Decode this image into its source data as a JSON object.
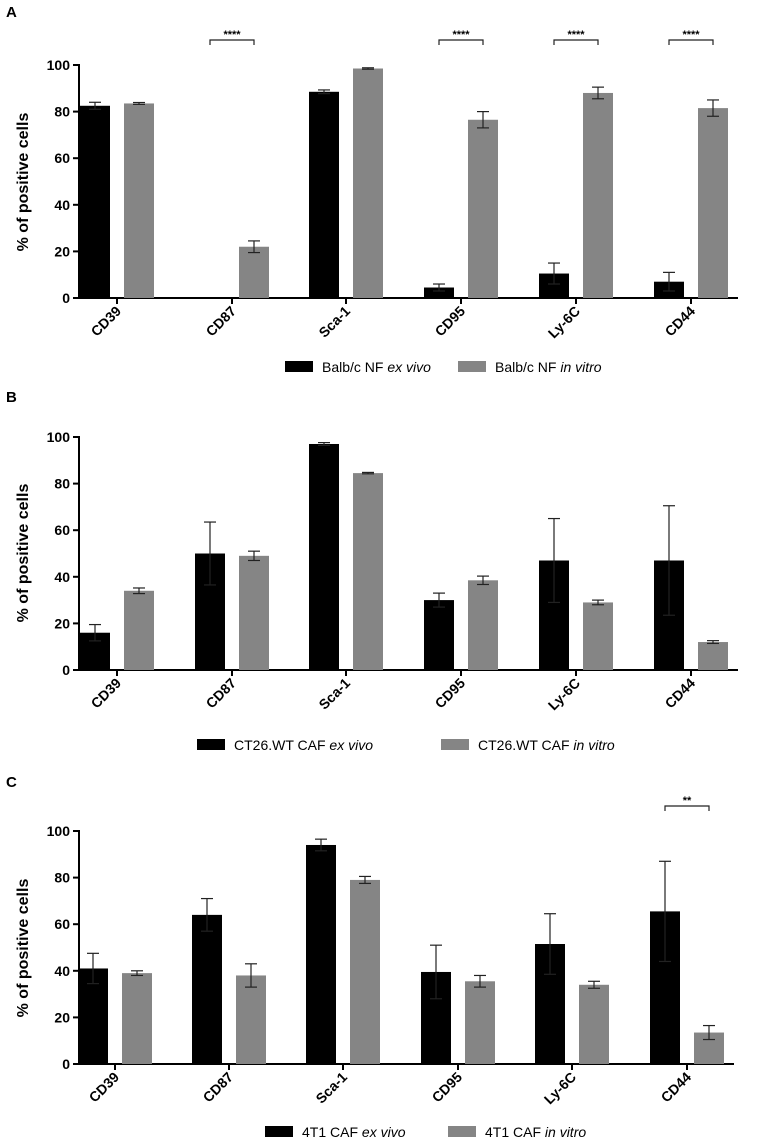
{
  "colors": {
    "ex_vivo": "#000000",
    "in_vitro": "#858585"
  },
  "chart_data": [
    {
      "panel": "A",
      "type": "bar",
      "ylabel": "% of positive cells",
      "ylim": [
        0,
        100
      ],
      "yticks": [
        0,
        20,
        40,
        60,
        80,
        100
      ],
      "categories": [
        "CD39",
        "CD87",
        "Sca-1",
        "CD95",
        "Ly-6C",
        "CD44"
      ],
      "series": [
        {
          "name": "Balb/c NF",
          "suffix": "ex vivo",
          "values": [
            82.5,
            0,
            88.5,
            4.5,
            10.5,
            7
          ],
          "errors": [
            1.5,
            0,
            0.8,
            1.5,
            4.5,
            4
          ]
        },
        {
          "name": "Balb/c NF",
          "suffix": "in vitro",
          "values": [
            83.5,
            22,
            98.5,
            76.5,
            88,
            81.5
          ],
          "errors": [
            0.4,
            2.5,
            0.3,
            3.5,
            2.5,
            3.5
          ]
        }
      ],
      "significance": [
        {
          "category": "CD87",
          "label": "****"
        },
        {
          "category": "CD95",
          "label": "****"
        },
        {
          "category": "Ly-6C",
          "label": "****"
        },
        {
          "category": "CD44",
          "label": "****"
        }
      ]
    },
    {
      "panel": "B",
      "type": "bar",
      "ylabel": "% of positive cells",
      "ylim": [
        0,
        100
      ],
      "yticks": [
        0,
        20,
        40,
        60,
        80,
        100
      ],
      "categories": [
        "CD39",
        "CD87",
        "Sca-1",
        "CD95",
        "Ly-6C",
        "CD44"
      ],
      "series": [
        {
          "name": "CT26.WT CAF",
          "suffix": "ex vivo",
          "values": [
            16,
            50,
            97,
            30,
            47,
            47
          ],
          "errors": [
            3.5,
            13.5,
            0.6,
            3,
            18,
            23.5
          ]
        },
        {
          "name": "CT26.WT CAF",
          "suffix": "in vitro",
          "values": [
            34,
            49,
            84.5,
            38.5,
            29,
            12
          ],
          "errors": [
            1.2,
            2,
            0.3,
            1.8,
            1,
            0.6
          ]
        }
      ],
      "significance": []
    },
    {
      "panel": "C",
      "type": "bar",
      "ylabel": "% of positive cells",
      "ylim": [
        0,
        100
      ],
      "yticks": [
        0,
        20,
        40,
        60,
        80,
        100
      ],
      "categories": [
        "CD39",
        "CD87",
        "Sca-1",
        "CD95",
        "Ly-6C",
        "CD44"
      ],
      "series": [
        {
          "name": "4T1 CAF",
          "suffix": "ex vivo",
          "values": [
            41,
            64,
            94,
            39.5,
            51.5,
            65.5
          ],
          "errors": [
            6.5,
            7,
            2.5,
            11.5,
            13,
            21.5
          ]
        },
        {
          "name": "4T1 CAF",
          "suffix": "in vitro",
          "values": [
            39,
            38,
            79,
            35.5,
            34,
            13.5
          ],
          "errors": [
            1,
            5,
            1.5,
            2.5,
            1.5,
            3
          ]
        }
      ],
      "significance": [
        {
          "category": "CD44",
          "label": "**"
        }
      ]
    }
  ]
}
